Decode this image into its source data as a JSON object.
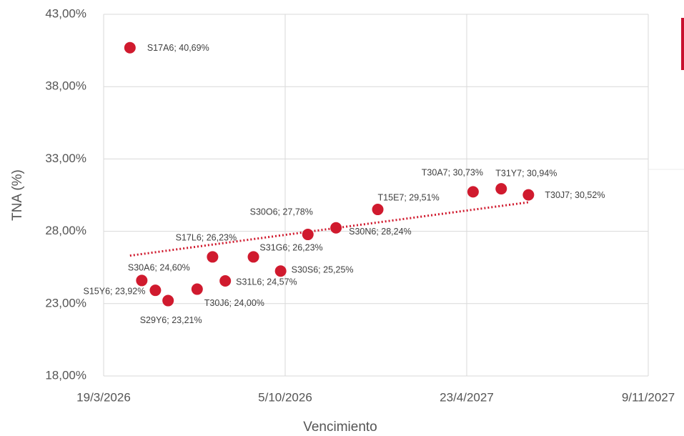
{
  "chart_data": {
    "type": "scatter",
    "x_label": "Vencimiento",
    "y_label": "TNA (%)",
    "color": "#d01a2e",
    "trendline": "linear",
    "grid": true,
    "xlim": [
      46100,
      46700
    ],
    "xticks": [
      {
        "value": 46100,
        "label": "19/3/2026"
      },
      {
        "value": 46300,
        "label": "5/10/2026"
      },
      {
        "value": 46500,
        "label": "23/4/2027"
      },
      {
        "value": 46700,
        "label": "9/11/2027"
      }
    ],
    "ylim": [
      18,
      43
    ],
    "yticks": [
      {
        "value": 18,
        "label": "18,00%"
      },
      {
        "value": 23,
        "label": "23,00%"
      },
      {
        "value": 28,
        "label": "28,00%"
      },
      {
        "value": 33,
        "label": "33,00%"
      },
      {
        "value": 38,
        "label": "38,00%"
      },
      {
        "value": 43,
        "label": "43,00%"
      }
    ],
    "x": [
      46129,
      46142,
      46157,
      46171,
      46203,
      46220,
      46234,
      46265,
      46295,
      46325,
      46356,
      46402,
      46507,
      46538,
      46568
    ],
    "values": [
      40.69,
      24.6,
      23.92,
      23.21,
      24.0,
      26.23,
      24.57,
      26.23,
      25.25,
      27.78,
      28.24,
      29.51,
      30.73,
      30.94,
      30.52
    ],
    "value_labels": [
      "S17A6; 40,69%",
      "S30A6; 24,60%",
      "S15Y6; 23,92%",
      "S29Y6; 23,21%",
      "T30J6; 24,00%",
      "S17L6; 26,23%",
      "S31L6; 24,57%",
      "S31G6; 26,23%",
      "S30S6; 25,25%",
      "S30O6; 27,78%",
      "S30N6; 28,24%",
      "T15E7; 29,51%",
      "T30A7; 30,73%",
      "T31Y7; 30,94%",
      "T30J7; 30,52%"
    ]
  }
}
